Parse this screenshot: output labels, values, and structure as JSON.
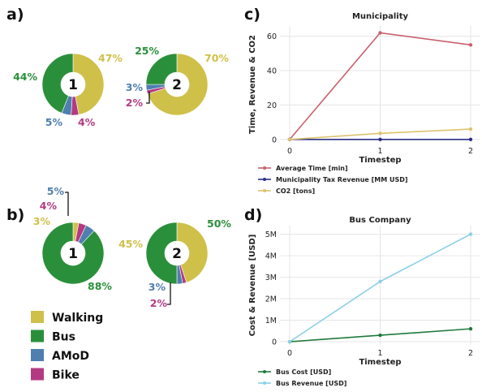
{
  "panels": {
    "a": "a)",
    "b": "b)",
    "c": "c)",
    "d": "d)"
  },
  "legend": [
    {
      "label": "Walking",
      "color": "#cfc04a"
    },
    {
      "label": "Bus",
      "color": "#2a8f3a"
    },
    {
      "label": "AMoD",
      "color": "#4e7fae"
    },
    {
      "label": "Bike",
      "color": "#b33a82"
    }
  ],
  "chart_data": [
    {
      "type": "pie",
      "panel": "a",
      "center_label": "1",
      "slices": [
        {
          "name": "Walking",
          "value": 47,
          "label": "47%"
        },
        {
          "name": "Bike",
          "value": 4,
          "label": "4%"
        },
        {
          "name": "AMoD",
          "value": 5,
          "label": "5%"
        },
        {
          "name": "Bus",
          "value": 44,
          "label": "44%"
        }
      ]
    },
    {
      "type": "pie",
      "panel": "a",
      "center_label": "2",
      "slices": [
        {
          "name": "Walking",
          "value": 70,
          "label": "70%"
        },
        {
          "name": "Bike",
          "value": 2,
          "label": "2%"
        },
        {
          "name": "AMoD",
          "value": 3,
          "label": "3%"
        },
        {
          "name": "Bus",
          "value": 25,
          "label": "25%"
        }
      ]
    },
    {
      "type": "pie",
      "panel": "b",
      "center_label": "1",
      "slices": [
        {
          "name": "Walking",
          "value": 3,
          "label": "3%"
        },
        {
          "name": "Bike",
          "value": 4,
          "label": "4%"
        },
        {
          "name": "AMoD",
          "value": 5,
          "label": "5%"
        },
        {
          "name": "Bus",
          "value": 88,
          "label": "88%"
        }
      ]
    },
    {
      "type": "pie",
      "panel": "b",
      "center_label": "2",
      "slices": [
        {
          "name": "Walking",
          "value": 45,
          "label": "45%"
        },
        {
          "name": "Bike",
          "value": 2,
          "label": "2%"
        },
        {
          "name": "AMoD",
          "value": 3,
          "label": "3%"
        },
        {
          "name": "Bus",
          "value": 50,
          "label": "50%"
        }
      ]
    },
    {
      "type": "line",
      "panel": "c",
      "title": "Municipality",
      "xlabel": "Timestep",
      "ylabel": "Time, Revenue & CO2",
      "x": [
        0,
        1,
        2
      ],
      "xticks": [
        "0",
        "1",
        "2"
      ],
      "yticks": [
        "0",
        "20",
        "40",
        "60"
      ],
      "ylim": [
        -2,
        66
      ],
      "series": [
        {
          "name": "Average Time [min]",
          "color": "#c9606e",
          "values": [
            0,
            62,
            55
          ]
        },
        {
          "name": "Municipality Tax Revenue [MM USD]",
          "color": "#2b2f86",
          "values": [
            0,
            0,
            0
          ]
        },
        {
          "name": "CO2 [tons]",
          "color": "#dcc36e",
          "values": [
            0,
            3.5,
            6
          ]
        }
      ]
    },
    {
      "type": "line",
      "panel": "d",
      "title": "Bus Company",
      "xlabel": "Timestep",
      "ylabel": "Cost & Revenue [USD]",
      "x": [
        0,
        1,
        2
      ],
      "xticks": [
        "0",
        "1",
        "2"
      ],
      "yticks": [
        "0",
        "1M",
        "2M",
        "3M",
        "4M",
        "5M"
      ],
      "ylim": [
        -150000,
        5400000
      ],
      "series": [
        {
          "name": "Bus Cost [USD]",
          "color": "#1e7a3c",
          "values": [
            0,
            300000,
            600000
          ]
        },
        {
          "name": "Bus Revenue [USD]",
          "color": "#8ccfe8",
          "values": [
            0,
            2800000,
            5000000
          ]
        }
      ]
    }
  ]
}
